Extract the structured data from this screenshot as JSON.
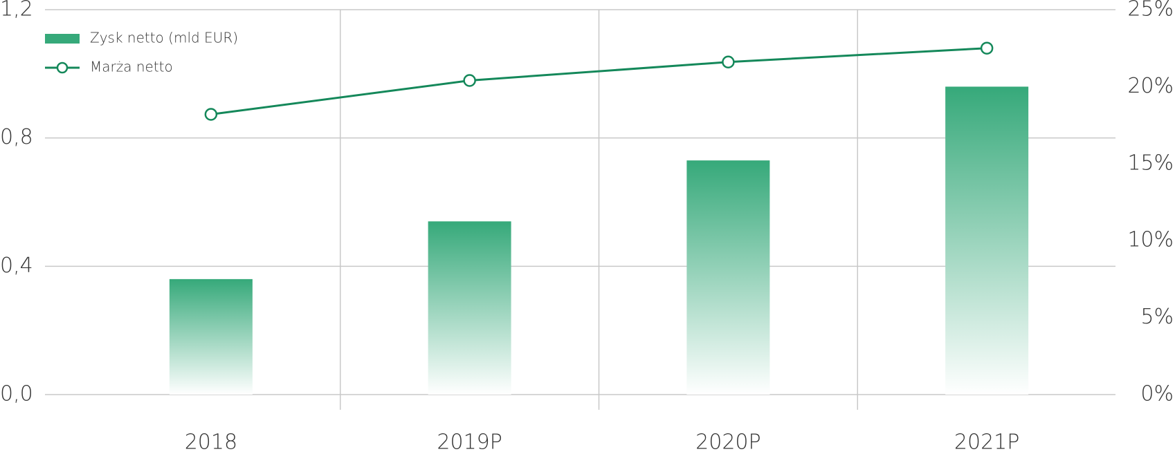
{
  "chart_data": {
    "type": "bar_line",
    "categories": [
      "2018",
      "2019P",
      "2020P",
      "2021P"
    ],
    "series": [
      {
        "name": "Zysk netto (mld EUR)",
        "type": "bar",
        "color": "#36a97a",
        "values": [
          0.36,
          0.54,
          0.73,
          0.96
        ]
      },
      {
        "name": "Marża netto",
        "type": "line",
        "axis": "y2",
        "color": "#14885a",
        "values": [
          18.2,
          20.4,
          21.6,
          22.5
        ]
      }
    ],
    "ylim": [
      0,
      1.2
    ],
    "yticks": [
      {
        "value": 0,
        "label": "0,0"
      },
      {
        "value": 0.4,
        "label": "0,4"
      },
      {
        "value": 0.8,
        "label": "0,8"
      },
      {
        "value": 1.2,
        "label": "1,2"
      }
    ],
    "y2lim": [
      0,
      25
    ],
    "y2ticks": [
      {
        "value": 0,
        "label": "0%"
      },
      {
        "value": 5,
        "label": "5%"
      },
      {
        "value": 10,
        "label": "10%"
      },
      {
        "value": 15,
        "label": "15%"
      },
      {
        "value": 20,
        "label": "20%"
      },
      {
        "value": 25,
        "label": "25%"
      }
    ],
    "grid": true,
    "legend": "upper left"
  }
}
